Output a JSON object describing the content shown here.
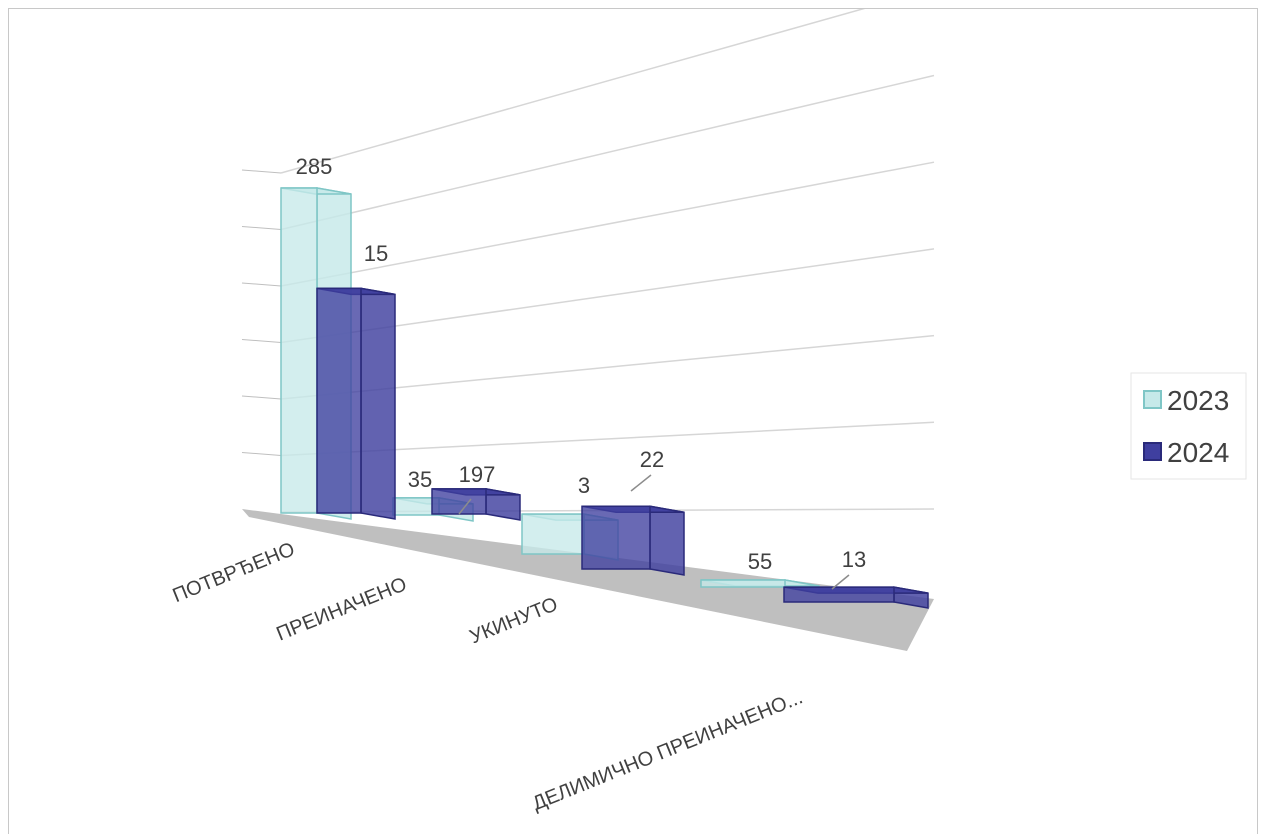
{
  "chart_data": {
    "type": "bar",
    "style": "3d-clustered-column",
    "categories": [
      "ПОТВРЂЕНО",
      "ПРЕИНАЧЕНО",
      "УКИНУТО",
      "ДЕЛИМИЧНО ПРЕИНАЧЕНО..."
    ],
    "series": [
      {
        "name": "2023",
        "values": [
          285,
          15,
          35,
          3
        ],
        "color": "#c6e9e9",
        "edge": "#7fc6c6"
      },
      {
        "name": "2024",
        "values": [
          197,
          22,
          55,
          13
        ],
        "color": "#3f3f9f",
        "edge": "#2a2a7a"
      }
    ],
    "title": "",
    "xlabel": "",
    "ylabel": "",
    "ylim": [
      0,
      300
    ],
    "grid": true,
    "legend": "right",
    "floor_color": "#bfbfbf"
  }
}
